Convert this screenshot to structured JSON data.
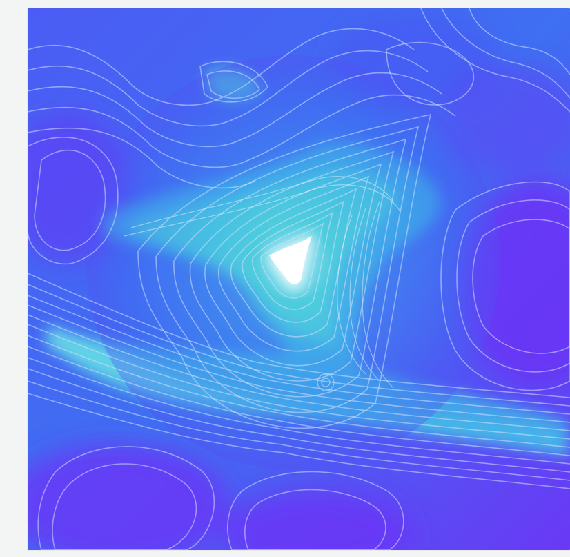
{
  "image": {
    "subject": "contour-heightmap-artwork",
    "colors": {
      "background": "#f3f5f5",
      "low": "#6a35f5",
      "mid": "#3f72f2",
      "high": "#38b6e6",
      "ridge": "#52d2da",
      "peak": "#ffffff",
      "contour_line": "#c8d8ff"
    },
    "contour_count": 28
  }
}
